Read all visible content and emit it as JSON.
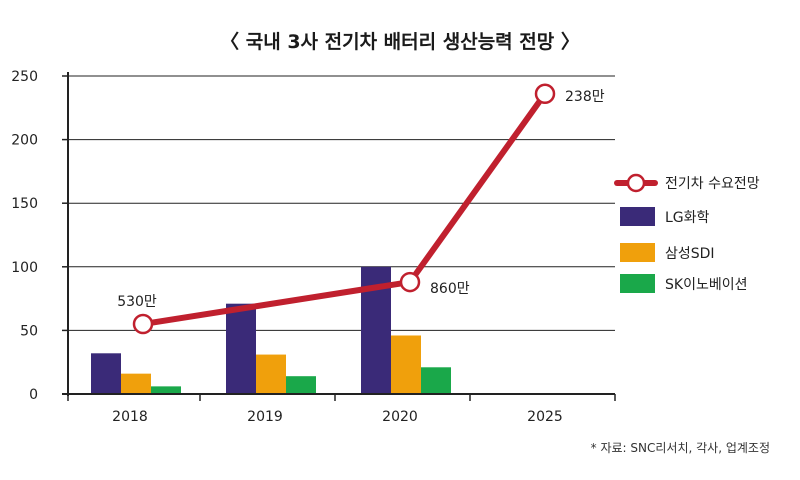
{
  "title": "〈 국내 3사 전기차 배터리 생산능력 전망 〉",
  "source": "* 자료: SNC리서치, 각사, 업계조정",
  "colors": {
    "lg": "#3a2a78",
    "samsung": "#f0a00c",
    "sk": "#1aa84a",
    "ev": "#c0202e"
  },
  "chart_data": {
    "type": "bar",
    "categories": [
      "2018",
      "2019",
      "2020",
      "2025"
    ],
    "ylim": [
      0,
      250
    ],
    "yticks": [
      "0",
      "50",
      "100",
      "150",
      "200",
      "250"
    ],
    "grid": true,
    "legend_position": "right",
    "series": [
      {
        "name": "LG화학",
        "type": "bar",
        "values": [
          32,
          71,
          100,
          null
        ]
      },
      {
        "name": "삼성SDI",
        "type": "bar",
        "values": [
          16,
          31,
          46,
          null
        ]
      },
      {
        "name": "SK이노베이션",
        "type": "bar",
        "values": [
          6,
          14,
          21,
          null
        ]
      },
      {
        "name": "전기차 수요전망",
        "type": "line",
        "values": [
          55,
          null,
          88,
          236
        ]
      }
    ],
    "data_labels": [
      "530만",
      "860만",
      "238만"
    ]
  }
}
